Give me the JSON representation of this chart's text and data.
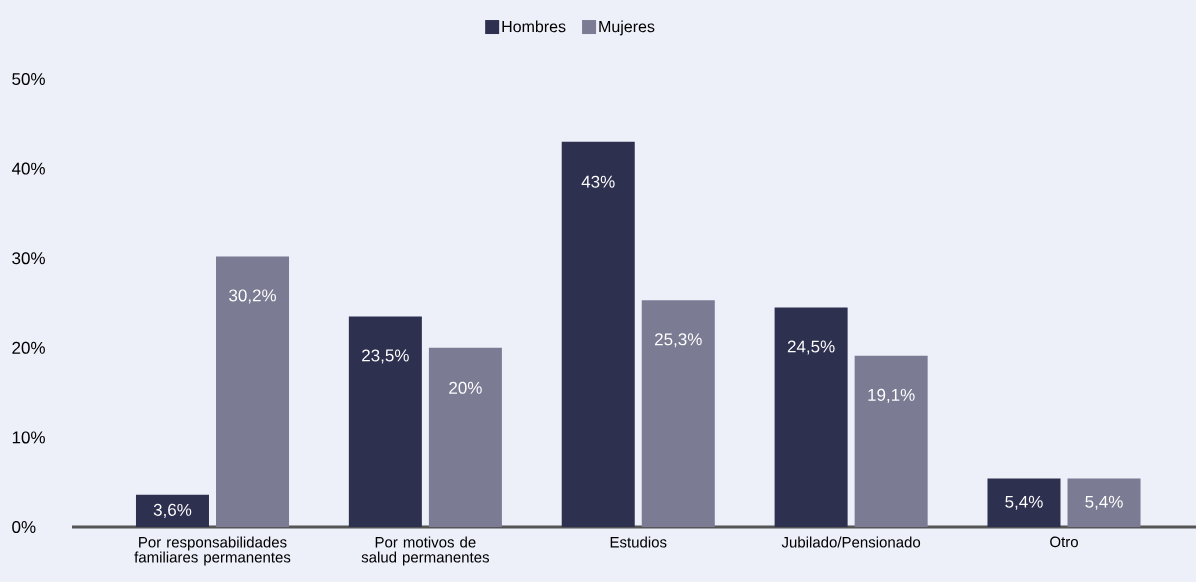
{
  "chart_data": {
    "type": "bar",
    "categories": [
      "Por responsabilidades familiares permanentes",
      "Por motivos de salud permanentes",
      "Estudios",
      "Jubilado/Pensionado",
      "Otro"
    ],
    "series": [
      {
        "name": "Hombres",
        "color": "#2e3050",
        "values": [
          3.6,
          23.5,
          43,
          24.5,
          5.4
        ],
        "value_labels": [
          "3,6%",
          "23,5%",
          "43%",
          "24,5%",
          "5,4%"
        ]
      },
      {
        "name": "Mujeres",
        "color": "#7b7c94",
        "values": [
          30.2,
          20,
          25.3,
          19.1,
          5.4
        ],
        "value_labels": [
          "30,2%",
          "20%",
          "25,3%",
          "19,1%",
          "5,4%"
        ]
      }
    ],
    "ylim": [
      0,
      50
    ],
    "yticks": [
      {
        "value": 0,
        "label": "0%"
      },
      {
        "value": 10,
        "label": "10%"
      },
      {
        "value": 20,
        "label": "20%"
      },
      {
        "value": 30,
        "label": "30%"
      },
      {
        "value": 40,
        "label": "40%"
      },
      {
        "value": 50,
        "label": "50%"
      }
    ],
    "grid": false,
    "legend": "top"
  }
}
